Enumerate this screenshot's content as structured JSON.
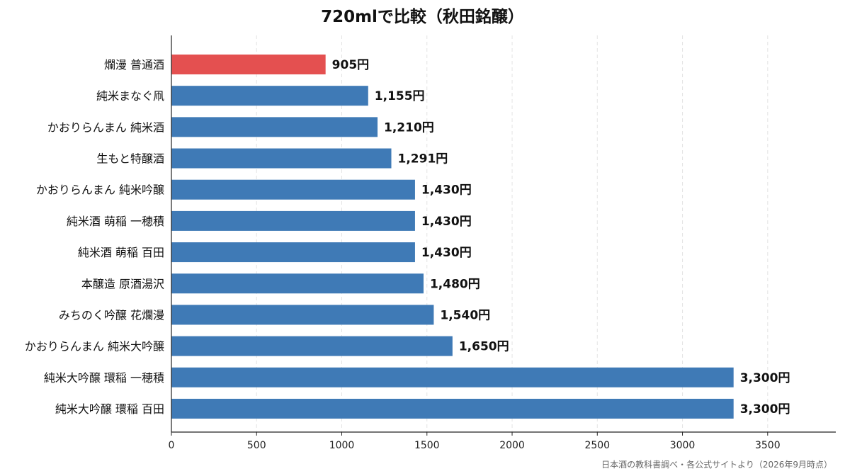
{
  "chart_data": {
    "type": "bar",
    "orientation": "horizontal",
    "title": "720mlで比較（秋田銘醸）",
    "categories": [
      "爛漫 普通酒",
      "純米まなぐ凧",
      "かおりらんまん 純米酒",
      "生もと特醸酒",
      "かおりらんまん 純米吟醸",
      "純米酒 萌稲 一穂積",
      "純米酒 萌稲 百田",
      "本醸造 原酒湯沢",
      "みちのく吟醸 花爛漫",
      "かおりらんまん 純米大吟醸",
      "純米大吟醸 環稲 一穂積",
      "純米大吟醸 環稲 百田"
    ],
    "values": [
      905,
      1155,
      1210,
      1291,
      1430,
      1430,
      1430,
      1480,
      1540,
      1650,
      3300,
      3300
    ],
    "value_labels": [
      "905円",
      "1,155円",
      "1,210円",
      "1,291円",
      "1,430円",
      "1,430円",
      "1,430円",
      "1,480円",
      "1,540円",
      "1,650円",
      "3,300円",
      "3,300円"
    ],
    "highlight_index": 0,
    "xlim": [
      0,
      3900
    ],
    "xticks": [
      0,
      500,
      1000,
      1500,
      2000,
      2500,
      3000,
      3500
    ],
    "grid": "vertical dashed",
    "xlabel": "",
    "ylabel": ""
  },
  "source_note": "日本酒の教科書調べ・各公式サイトより（2026年9月時点）",
  "colors": {
    "highlight": "#e45050",
    "bar": "#3f7ab6",
    "grid": "#e3e3e3",
    "axis": "#222222"
  }
}
